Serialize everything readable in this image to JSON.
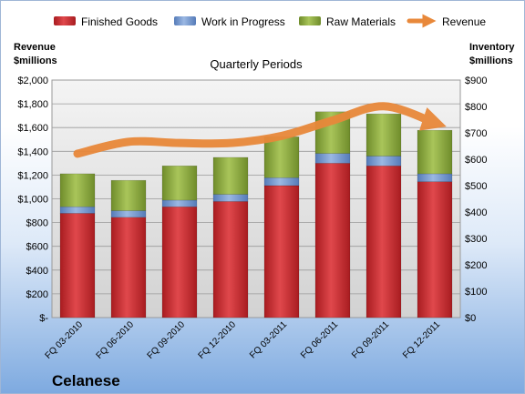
{
  "chart_data": {
    "type": "bar",
    "stacked": true,
    "title": "Quarterly Periods",
    "company": "Celanese",
    "categories": [
      "FQ 03-2010",
      "FQ 06-2010",
      "FQ 09-2010",
      "FQ 12-2010",
      "FQ 03-2011",
      "FQ 06-2011",
      "FQ 09-2011",
      "FQ 12-2011"
    ],
    "left_axis": {
      "title_line1": "Revenue",
      "title_line2": "$millions",
      "range": [
        0,
        2000
      ],
      "ticks": [
        0,
        200,
        400,
        600,
        800,
        1000,
        1200,
        1400,
        1600,
        1800,
        2000
      ],
      "tick_labels": [
        "$-",
        "$200",
        "$400",
        "$600",
        "$800",
        "$1,000",
        "$1,200",
        "$1,400",
        "$1,600",
        "$1,800",
        "$2,000"
      ]
    },
    "right_axis": {
      "title_line1": "Inventory",
      "title_line2": "$millions",
      "range": [
        0,
        900
      ],
      "ticks": [
        0,
        100,
        200,
        300,
        400,
        500,
        600,
        700,
        800,
        900
      ],
      "tick_labels": [
        "$0",
        "$100",
        "$200",
        "$300",
        "$400",
        "$500",
        "$600",
        "$700",
        "$800",
        "$900"
      ]
    },
    "series": [
      {
        "name": "Finished Goods",
        "axis": "right",
        "color": "#c0272d",
        "values": [
          395,
          380,
          420,
          440,
          500,
          585,
          575,
          515
        ]
      },
      {
        "name": "Work in Progress",
        "axis": "right",
        "color": "#6d8fc7",
        "values": [
          25,
          25,
          25,
          27,
          30,
          37,
          37,
          30
        ]
      },
      {
        "name": "Raw Materials",
        "axis": "right",
        "color": "#8dab3d",
        "values": [
          125,
          115,
          130,
          140,
          155,
          158,
          160,
          165
        ]
      }
    ],
    "line_series": {
      "name": "Revenue",
      "axis": "left",
      "color": "#e8883a",
      "values": [
        1380,
        1480,
        1470,
        1470,
        1530,
        1660,
        1780,
        1640
      ]
    },
    "grid": true,
    "legend_position": "top"
  }
}
